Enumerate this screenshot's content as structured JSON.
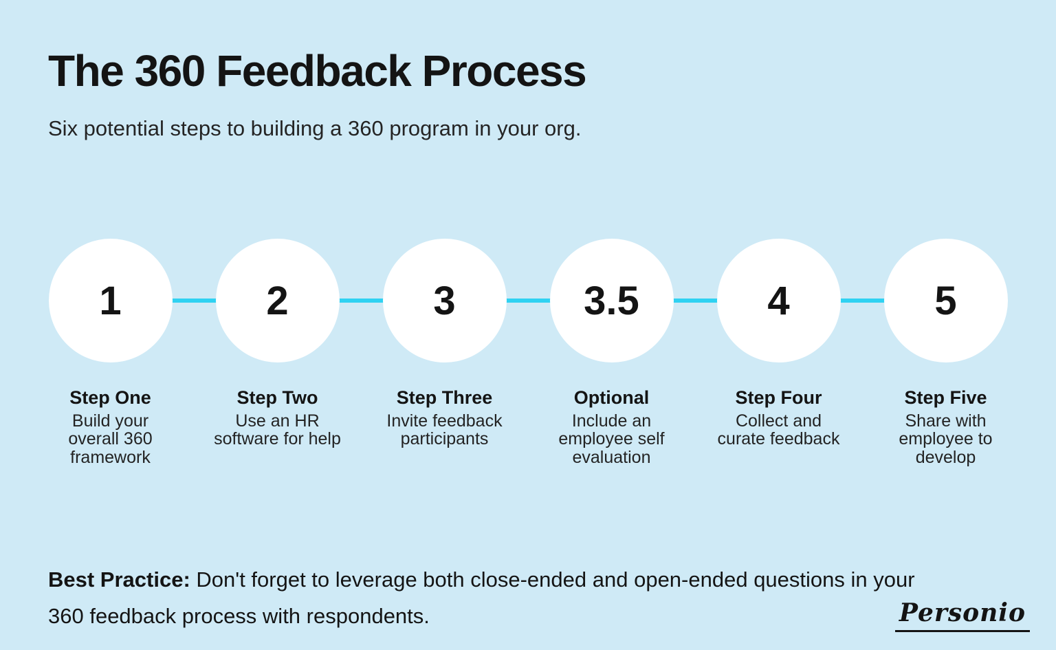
{
  "colors": {
    "background": "#cfeaf6",
    "accent": "#2fd2f2",
    "circle": "#ffffff",
    "text": "#141414"
  },
  "header": {
    "title": "The 360 Feedback Process",
    "subtitle": "Six potential steps to building a 360 program in your org."
  },
  "steps": [
    {
      "number": "1",
      "label": "Step One",
      "description": "Build your overall 360 framework"
    },
    {
      "number": "2",
      "label": "Step Two",
      "description": "Use an HR software for help"
    },
    {
      "number": "3",
      "label": "Step Three",
      "description": "Invite feedback participants"
    },
    {
      "number": "3.5",
      "label": "Optional",
      "description": "Include an employee self evaluation"
    },
    {
      "number": "4",
      "label": "Step Four",
      "description": "Collect and curate feedback"
    },
    {
      "number": "5",
      "label": "Step Five",
      "description": "Share with employee to develop"
    }
  ],
  "footer": {
    "best_practice_label": "Best Practice:",
    "best_practice_text": "Don't forget to leverage both close-ended and open-ended questions in your 360 feedback process with respondents.",
    "brand": "Personio"
  }
}
